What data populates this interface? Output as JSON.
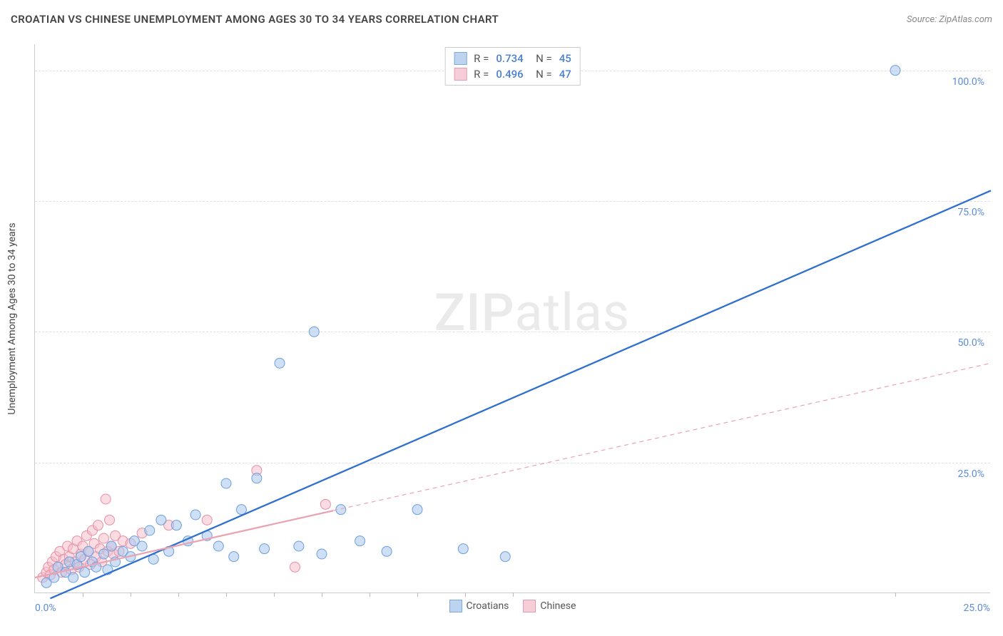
{
  "header": {
    "title": "CROATIAN VS CHINESE UNEMPLOYMENT AMONG AGES 30 TO 34 YEARS CORRELATION CHART",
    "source": "Source: ZipAtlas.com"
  },
  "watermark": {
    "part1": "ZIP",
    "part2": "atlas"
  },
  "chart": {
    "type": "scatter",
    "yaxis_title": "Unemployment Among Ages 30 to 34 years",
    "xlim": [
      0,
      25
    ],
    "ylim": [
      0,
      105
    ],
    "background_color": "#ffffff",
    "grid_color": "#e0e0e0",
    "axis_color": "#cccccc",
    "label_color": "#5b8dd6",
    "yticks": [
      {
        "v": 25,
        "label": "25.0%"
      },
      {
        "v": 50,
        "label": "50.0%"
      },
      {
        "v": 75,
        "label": "75.0%"
      },
      {
        "v": 100,
        "label": "100.0%"
      }
    ],
    "xaxis_left_label": "0.0%",
    "xaxis_right_label": "25.0%",
    "xtick_positions": [
      1.25,
      2.5,
      3.75,
      5,
      6.25,
      7.5,
      8.75,
      10,
      11.25,
      12.5,
      22.5
    ],
    "marker_radius": 7,
    "marker_opacity": 0.55,
    "trend_line_width": 2.3,
    "series": [
      {
        "name": "Croatians",
        "color_fill": "#a8c6ec",
        "color_stroke": "#6b9fde",
        "swatch_fill": "#bcd4ef",
        "swatch_stroke": "#7fa9db",
        "R": "0.734",
        "N": "45",
        "trend": {
          "x1": 0.4,
          "y1": -1,
          "x2": 25,
          "y2": 77,
          "dash": "none",
          "color": "#2f6fd0"
        },
        "points": [
          [
            0.3,
            2
          ],
          [
            0.5,
            3
          ],
          [
            0.6,
            5
          ],
          [
            0.8,
            4
          ],
          [
            0.9,
            6
          ],
          [
            1.0,
            3
          ],
          [
            1.1,
            5.5
          ],
          [
            1.2,
            7
          ],
          [
            1.3,
            4
          ],
          [
            1.4,
            8
          ],
          [
            1.5,
            6
          ],
          [
            1.6,
            5
          ],
          [
            1.8,
            7.5
          ],
          [
            1.9,
            4.5
          ],
          [
            2.0,
            9
          ],
          [
            2.1,
            6
          ],
          [
            2.3,
            8
          ],
          [
            2.5,
            7
          ],
          [
            2.6,
            10
          ],
          [
            2.8,
            9
          ],
          [
            3.0,
            12
          ],
          [
            3.1,
            6.5
          ],
          [
            3.3,
            14
          ],
          [
            3.5,
            8
          ],
          [
            3.7,
            13
          ],
          [
            4.0,
            10
          ],
          [
            4.2,
            15
          ],
          [
            4.5,
            11
          ],
          [
            4.8,
            9
          ],
          [
            5.0,
            21
          ],
          [
            5.2,
            7
          ],
          [
            5.4,
            16
          ],
          [
            5.8,
            22
          ],
          [
            6.0,
            8.5
          ],
          [
            6.4,
            44
          ],
          [
            6.9,
            9
          ],
          [
            7.3,
            50
          ],
          [
            7.5,
            7.5
          ],
          [
            8.0,
            16
          ],
          [
            8.5,
            10
          ],
          [
            9.2,
            8
          ],
          [
            10.0,
            16
          ],
          [
            11.2,
            8.5
          ],
          [
            12.3,
            7
          ],
          [
            22.5,
            100
          ]
        ]
      },
      {
        "name": "Chinese",
        "color_fill": "#f5bfcb",
        "color_stroke": "#e78fa4",
        "swatch_fill": "#f7cdd7",
        "swatch_stroke": "#e59bb0",
        "R": "0.496",
        "N": "47",
        "trend": {
          "x1": 0,
          "y1": 3,
          "x2": 25,
          "y2": 44,
          "dash": "6,5",
          "color": "#e9a3b2",
          "solid_until": 7.8
        },
        "points": [
          [
            0.2,
            3
          ],
          [
            0.3,
            4
          ],
          [
            0.35,
            5
          ],
          [
            0.4,
            3.5
          ],
          [
            0.45,
            6
          ],
          [
            0.5,
            4.5
          ],
          [
            0.55,
            7
          ],
          [
            0.6,
            5
          ],
          [
            0.65,
            8
          ],
          [
            0.7,
            4
          ],
          [
            0.75,
            6.5
          ],
          [
            0.8,
            5.5
          ],
          [
            0.85,
            9
          ],
          [
            0.9,
            7
          ],
          [
            0.95,
            4.5
          ],
          [
            1.0,
            8.5
          ],
          [
            1.05,
            6
          ],
          [
            1.1,
            10
          ],
          [
            1.15,
            5
          ],
          [
            1.2,
            7.5
          ],
          [
            1.25,
            9
          ],
          [
            1.3,
            6.5
          ],
          [
            1.35,
            11
          ],
          [
            1.4,
            8
          ],
          [
            1.45,
            5.5
          ],
          [
            1.5,
            12
          ],
          [
            1.55,
            9.5
          ],
          [
            1.6,
            7
          ],
          [
            1.65,
            13
          ],
          [
            1.7,
            8.5
          ],
          [
            1.75,
            6
          ],
          [
            1.8,
            10.5
          ],
          [
            1.85,
            18
          ],
          [
            1.9,
            8
          ],
          [
            1.95,
            14
          ],
          [
            2.0,
            9
          ],
          [
            2.05,
            7.5
          ],
          [
            2.1,
            11
          ],
          [
            2.2,
            8
          ],
          [
            2.3,
            10
          ],
          [
            2.5,
            9.5
          ],
          [
            2.8,
            11.5
          ],
          [
            3.5,
            13
          ],
          [
            4.5,
            14
          ],
          [
            5.8,
            23.5
          ],
          [
            6.8,
            5
          ],
          [
            7.6,
            17
          ]
        ]
      }
    ],
    "bottom_legend": [
      "Croatians",
      "Chinese"
    ]
  }
}
